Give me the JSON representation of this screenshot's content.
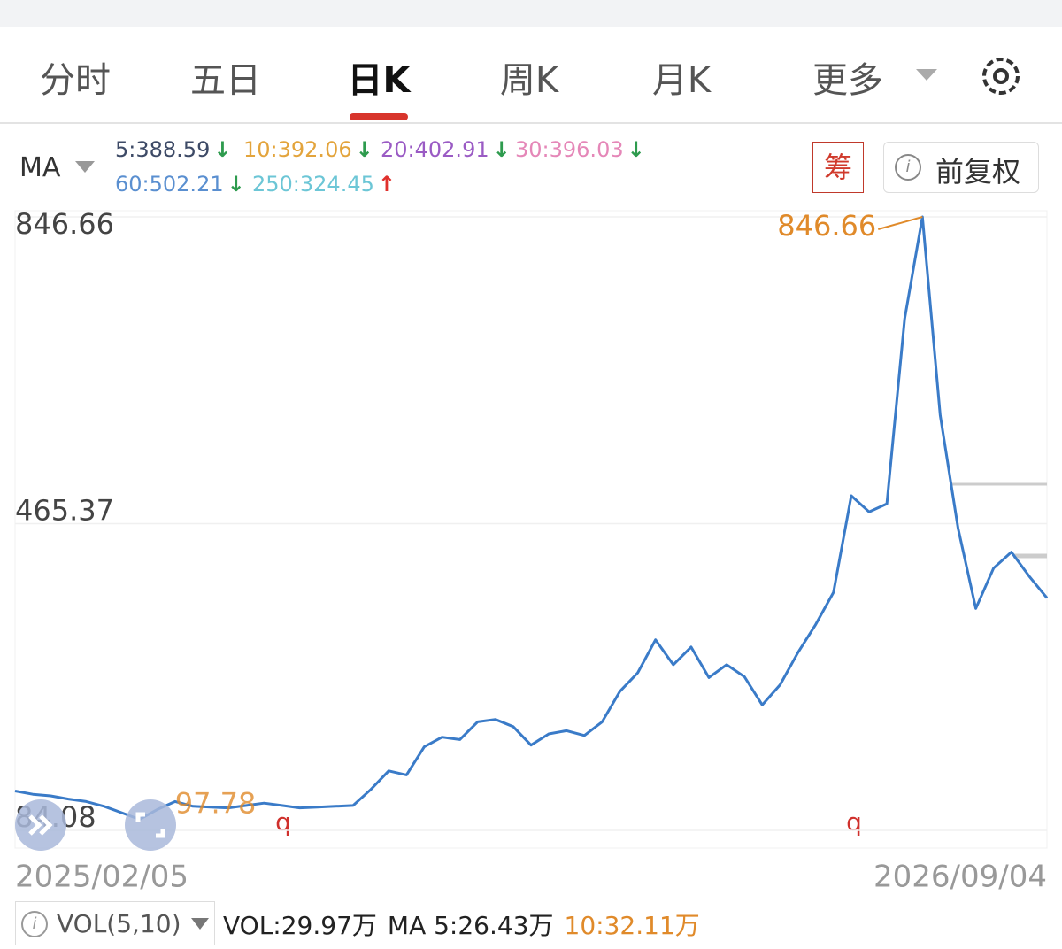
{
  "tabs": [
    "分时",
    "五日",
    "日K",
    "周K",
    "月K",
    "更多"
  ],
  "active_tab": 2,
  "ma": {
    "label": "MA",
    "items": [
      {
        "text": "5:388.59",
        "arrow": "↓",
        "color": "#3d4a66",
        "arrow_color": "#2e9b4e"
      },
      {
        "text": "10:392.06",
        "arrow": "↓",
        "color": "#e3a43c",
        "arrow_color": "#2e9b4e"
      },
      {
        "text": "20:402.91",
        "arrow": "↓",
        "color": "#9a5bc4",
        "arrow_color": "#2e9b4e"
      },
      {
        "text": "30:396.03",
        "arrow": "↓",
        "color": "#e587b8",
        "arrow_color": "#2e9b4e"
      },
      {
        "text": "60:502.21",
        "arrow": "↓",
        "color": "#5a8fd0",
        "arrow_color": "#2e9b4e"
      },
      {
        "text": "250:324.45",
        "arrow": "↑",
        "color": "#6cc6d6",
        "arrow_color": "#e0302c"
      }
    ]
  },
  "buttons": [
    "筹",
    "前复权"
  ],
  "chart_data": {
    "type": "line",
    "series": [
      {
        "color": "#3a7bc8",
        "values": [
          133,
          129,
          127,
          123,
          120,
          114,
          106,
          97.78,
          110,
          120,
          114,
          113,
          112,
          115,
          118,
          115,
          112,
          113,
          114,
          115,
          135,
          158,
          153,
          188,
          200,
          197,
          219,
          222,
          213,
          190,
          204,
          208,
          202,
          219,
          257,
          280,
          321,
          290,
          312,
          274,
          290,
          275,
          240,
          265,
          305,
          340,
          380,
          500,
          480,
          490,
          720,
          846.66,
          600,
          460,
          360,
          410,
          430,
          400,
          373
        ]
      }
    ],
    "ylim": [
      84.08,
      846.66
    ],
    "yticks": [
      846.66,
      465.37,
      84.08
    ],
    "x_start_label": "2025/02/05",
    "x_end_label": "2026/09/04",
    "max_label": 846.66,
    "min_label": 97.78,
    "markers": [
      "q",
      "q"
    ],
    "grid": true
  },
  "volume": {
    "selector": "VOL(5,10)",
    "items": [
      {
        "text": "VOL:29.97万",
        "color": "#222"
      },
      {
        "text": "MA 5:26.43万",
        "color": "#222"
      },
      {
        "text": "10:32.11万",
        "color": "#e08a2a"
      }
    ]
  }
}
